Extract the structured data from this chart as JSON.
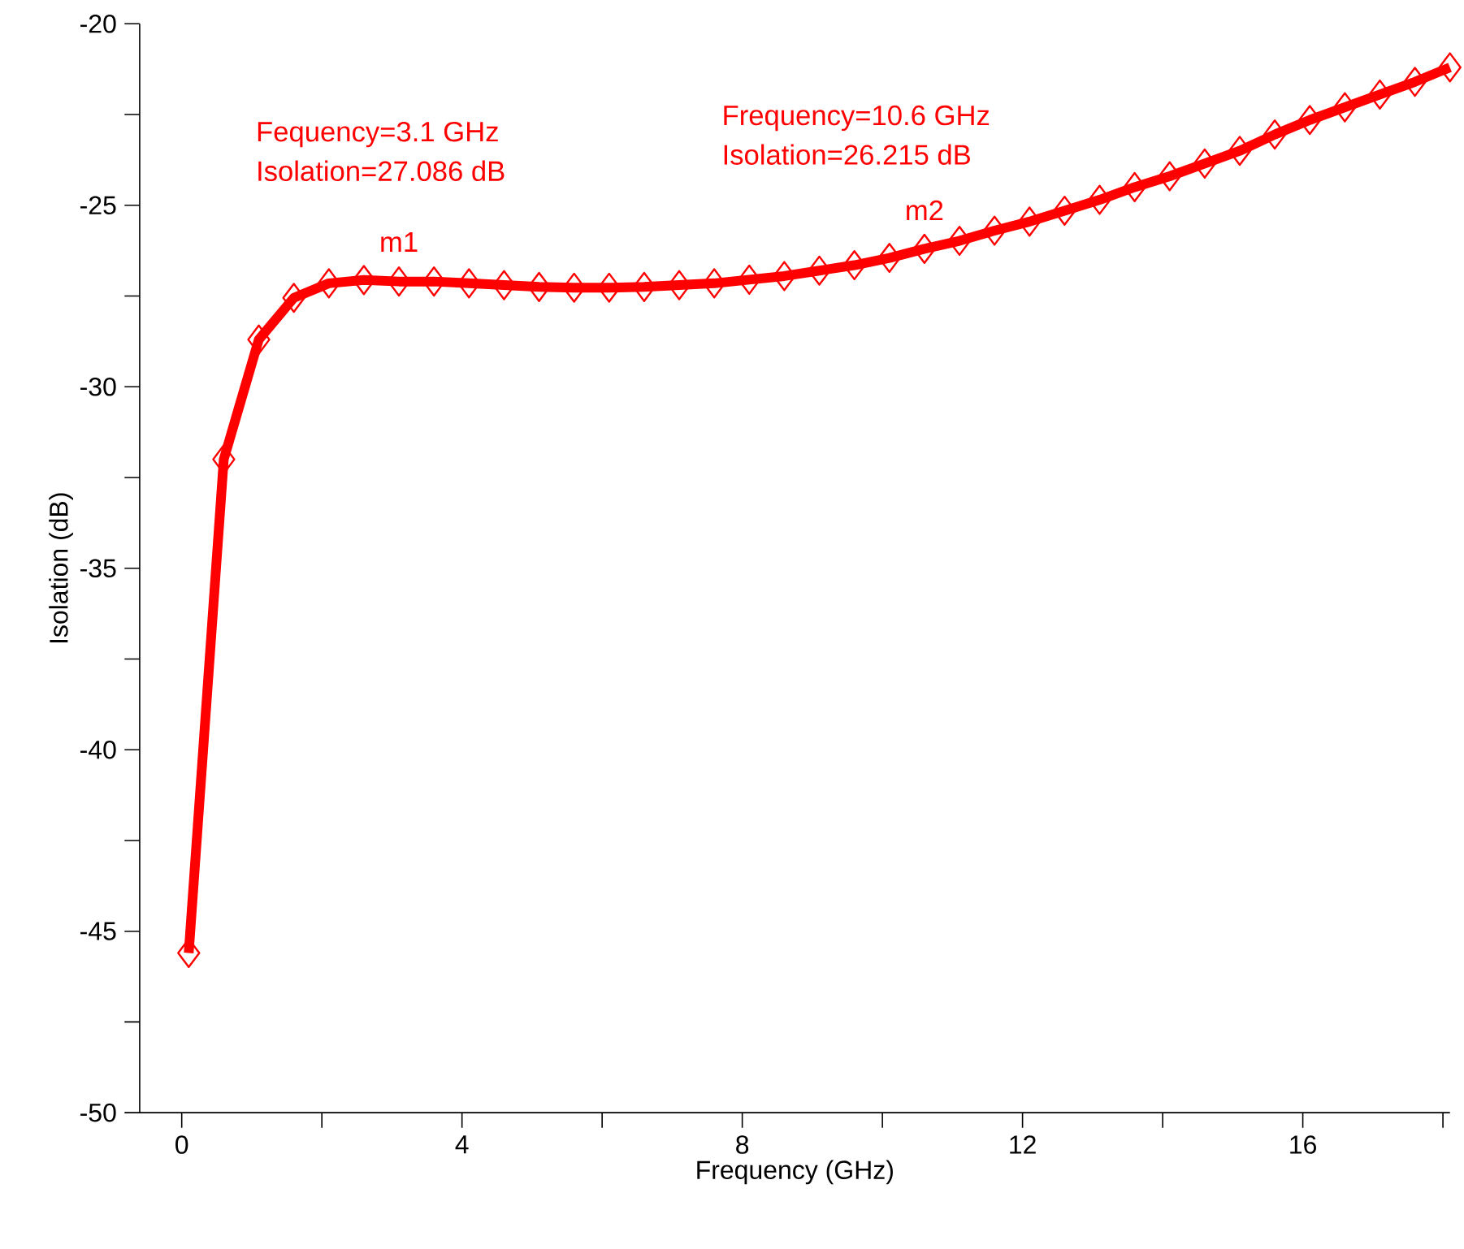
{
  "chart_data": {
    "type": "line",
    "xlabel": "Frequency (GHz)",
    "ylabel": "Isolation (dB)",
    "x": [
      0.1,
      0.6,
      1.1,
      1.6,
      2.1,
      2.6,
      3.1,
      3.6,
      4.1,
      4.6,
      5.1,
      5.6,
      6.1,
      6.6,
      7.1,
      7.6,
      8.1,
      8.6,
      9.1,
      9.6,
      10.1,
      10.6,
      11.1,
      11.6,
      12.1,
      12.6,
      13.1,
      13.6,
      14.1,
      14.6,
      15.1,
      15.6,
      16.1,
      16.6,
      17.1,
      17.6,
      18.1
    ],
    "series": [
      {
        "color": "#ff0000",
        "values": [
          -45.6,
          -32.0,
          -28.7,
          -27.55,
          -27.15,
          -27.06,
          -27.1,
          -27.1,
          -27.15,
          -27.2,
          -27.25,
          -27.27,
          -27.27,
          -27.25,
          -27.2,
          -27.15,
          -27.05,
          -26.95,
          -26.8,
          -26.65,
          -26.45,
          -26.2,
          -25.98,
          -25.7,
          -25.45,
          -25.15,
          -24.85,
          -24.5,
          -24.2,
          -23.85,
          -23.5,
          -23.05,
          -22.65,
          -22.3,
          -21.95,
          -21.6,
          -21.2
        ]
      }
    ],
    "xlim": [
      -0.6,
      18.1
    ],
    "ylim": [
      -50,
      -20
    ],
    "xticks": [
      0,
      {
        "value": 2,
        "label": null
      },
      4,
      {
        "value": 6,
        "label": null
      },
      8,
      {
        "value": 10,
        "label": null
      },
      12,
      {
        "value": 14,
        "label": null
      },
      16,
      {
        "value": 18,
        "label": null
      }
    ],
    "yticks": [
      -50,
      {
        "value": -47.5,
        "label": null
      },
      -45,
      {
        "value": -42.5,
        "label": null
      },
      -40,
      {
        "value": -37.5,
        "label": null
      },
      -35,
      {
        "value": -32.5,
        "label": null
      },
      -30,
      {
        "value": -27.5,
        "label": null
      },
      -25,
      {
        "value": -22.5,
        "label": null
      },
      -20
    ],
    "marker": "diamond",
    "line_style": "solid",
    "grid": false,
    "annotations": [
      {
        "text": "m1",
        "x": 3.1,
        "y": -27.086
      },
      {
        "text": "m2",
        "x": 10.6,
        "y": -26.215
      },
      "Fequency=3.1 GHz",
      "Isolation=27.086 dB",
      "Frequency=10.6 GHz",
      "Isolation=26.215 dB"
    ]
  }
}
